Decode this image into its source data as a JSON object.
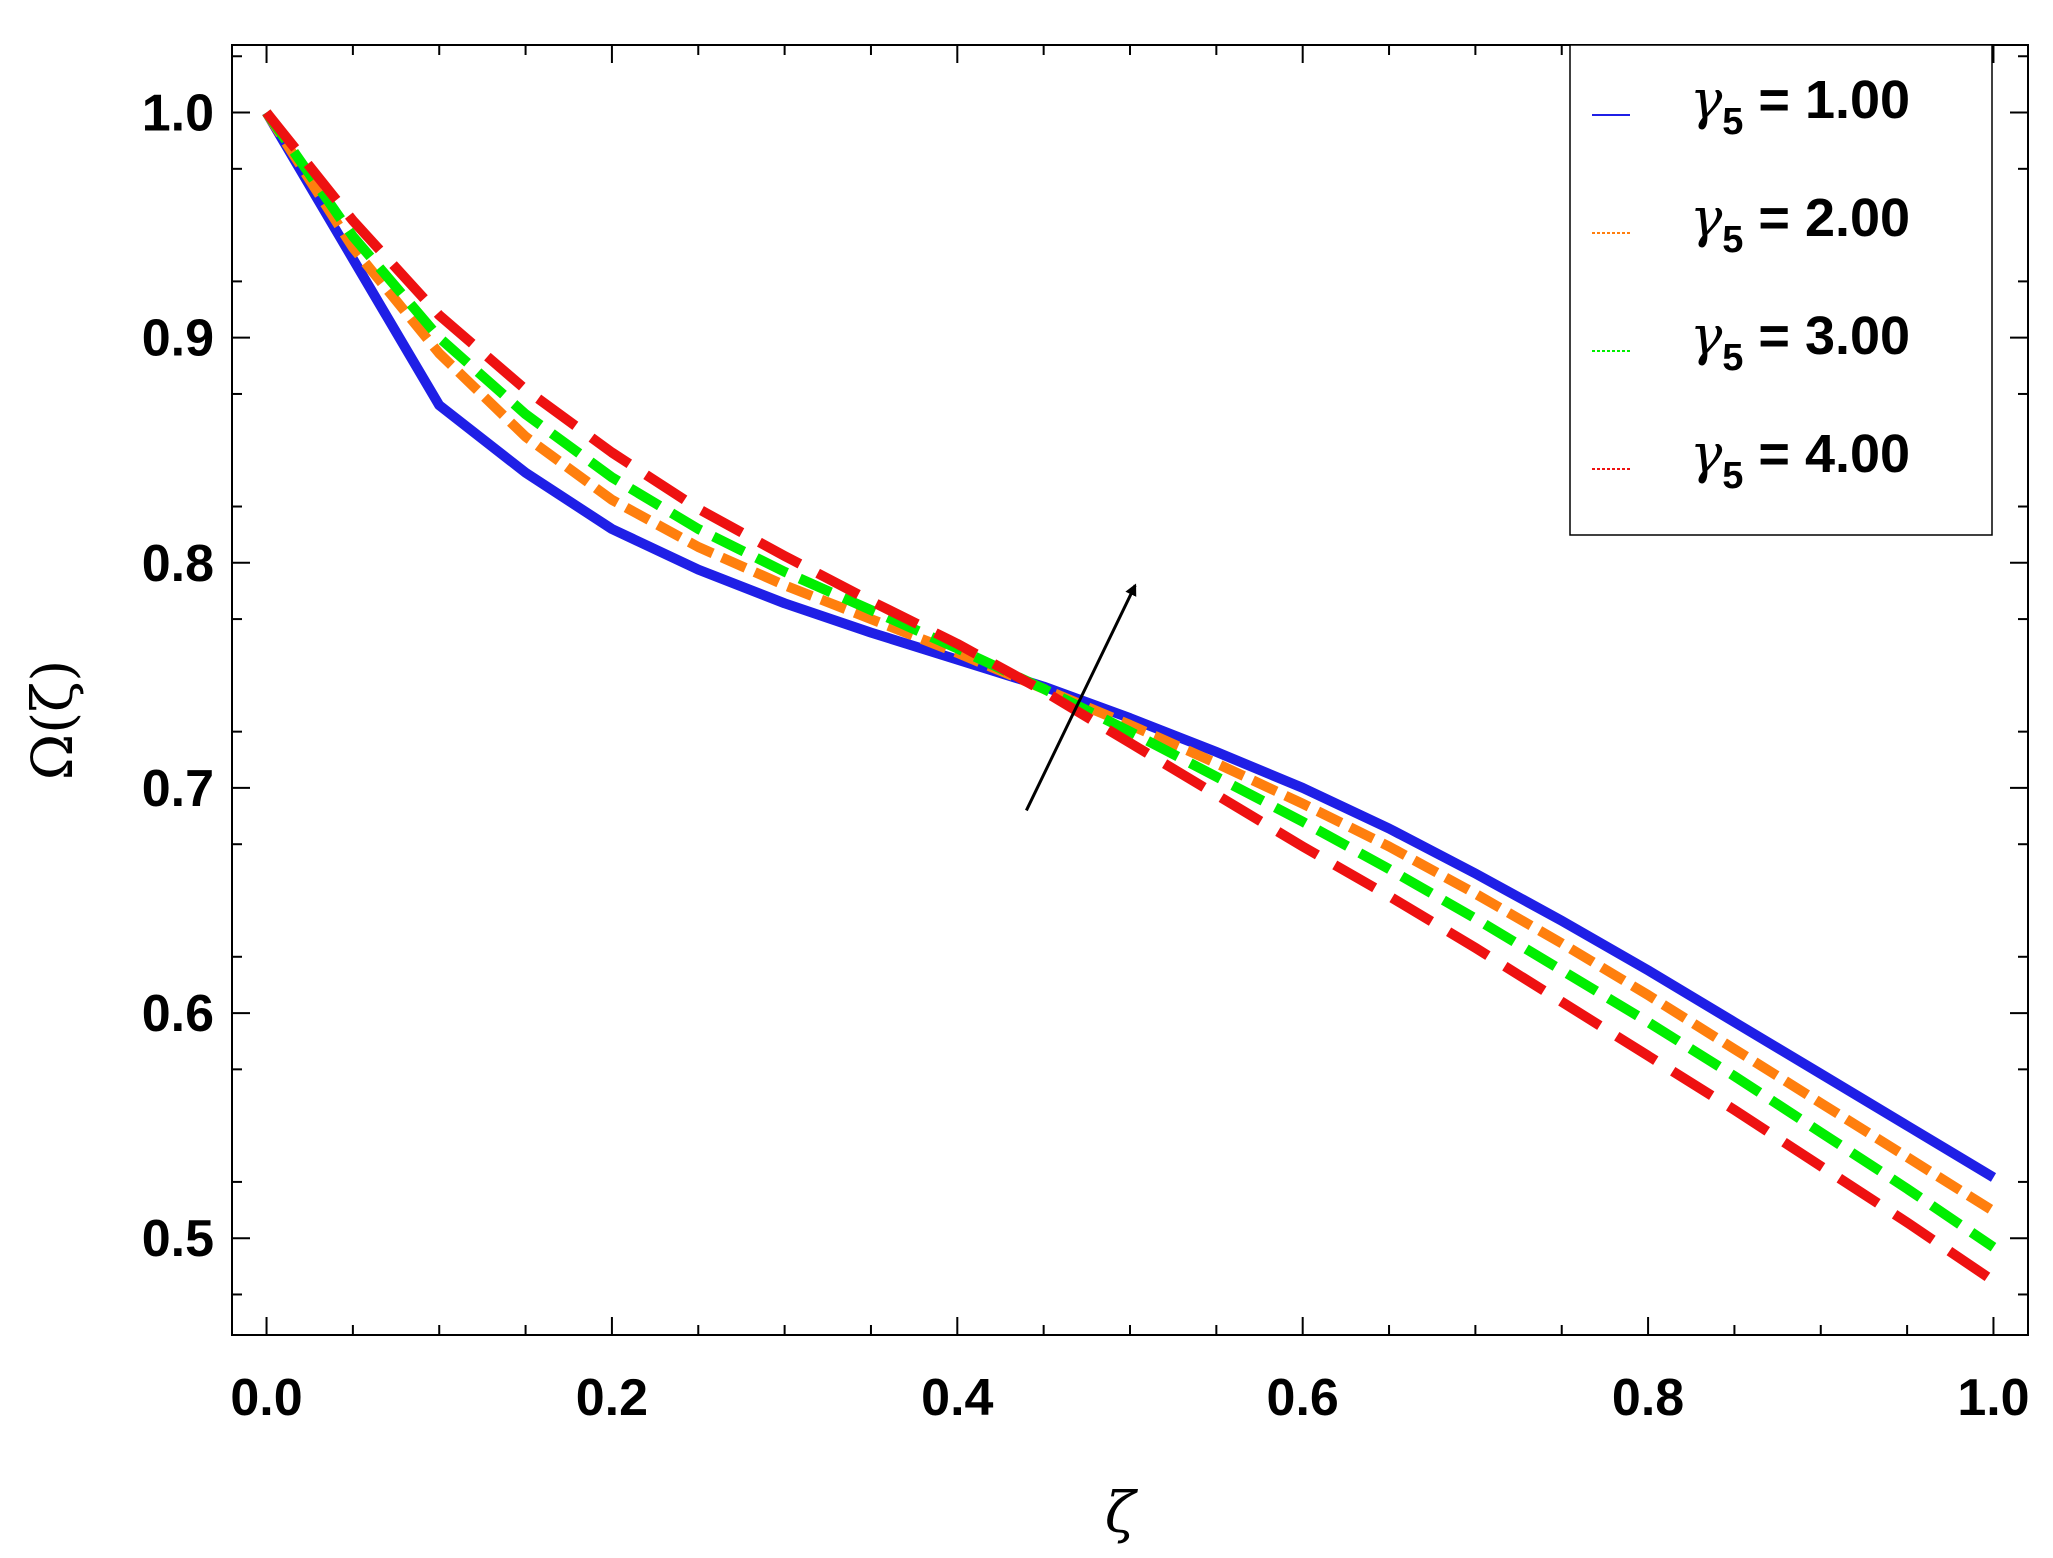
{
  "chart_data": {
    "type": "line",
    "xlabel": "ζ",
    "ylabel": "Ω(ζ)",
    "xlim": [
      -0.02,
      1.02
    ],
    "ylim": [
      0.457,
      1.03
    ],
    "x_ticks": [
      "0.0",
      "0.2",
      "0.4",
      "0.6",
      "0.8",
      "1.0"
    ],
    "y_ticks": [
      "0.5",
      "0.6",
      "0.7",
      "0.8",
      "0.9",
      "1.0"
    ],
    "grid": false,
    "legend_position": "top-right",
    "x": [
      0.0,
      0.05,
      0.1,
      0.15,
      0.2,
      0.25,
      0.3,
      0.35,
      0.4,
      0.45,
      0.5,
      0.55,
      0.6,
      0.65,
      0.7,
      0.75,
      0.8,
      0.85,
      0.9,
      0.95,
      1.0
    ],
    "series": [
      {
        "name": "γ5 = 1.00",
        "legend_symbol": "γ",
        "legend_sub": "5",
        "legend_value": " = 1.00",
        "color": "#1f1fe6",
        "dash": "solid",
        "values": [
          1.0,
          0.935,
          0.87,
          0.84,
          0.815,
          0.797,
          0.782,
          0.769,
          0.757,
          0.745,
          0.731,
          0.716,
          0.7,
          0.682,
          0.662,
          0.641,
          0.619,
          0.596,
          0.573,
          0.55,
          0.527
        ]
      },
      {
        "name": "γ5 = 2.00",
        "legend_symbol": "γ",
        "legend_sub": "5",
        "legend_value": " = 2.00",
        "color": "#ff7f0e",
        "dash": "short",
        "values": [
          1.0,
          0.94,
          0.893,
          0.856,
          0.828,
          0.807,
          0.79,
          0.775,
          0.76,
          0.744,
          0.728,
          0.711,
          0.693,
          0.674,
          0.653,
          0.631,
          0.608,
          0.584,
          0.56,
          0.536,
          0.512
        ]
      },
      {
        "name": "γ5 = 3.00",
        "legend_symbol": "γ",
        "legend_sub": "5",
        "legend_value": " = 3.00",
        "color": "#00ee00",
        "dash": "medium",
        "values": [
          1.0,
          0.945,
          0.9,
          0.866,
          0.838,
          0.815,
          0.796,
          0.779,
          0.762,
          0.744,
          0.725,
          0.705,
          0.685,
          0.664,
          0.642,
          0.619,
          0.596,
          0.572,
          0.547,
          0.522,
          0.496
        ]
      },
      {
        "name": "γ5 = 4.00",
        "legend_symbol": "γ",
        "legend_sub": "5",
        "legend_value": " = 4.00",
        "color": "#ee1111",
        "dash": "long",
        "values": [
          1.0,
          0.952,
          0.91,
          0.877,
          0.849,
          0.824,
          0.803,
          0.783,
          0.764,
          0.743,
          0.72,
          0.697,
          0.674,
          0.652,
          0.629,
          0.605,
          0.581,
          0.557,
          0.532,
          0.507,
          0.481
        ]
      }
    ],
    "annotations": [
      {
        "type": "arrow",
        "from": [
          0.44,
          0.69
        ],
        "to": [
          0.503,
          0.79
        ]
      }
    ]
  }
}
